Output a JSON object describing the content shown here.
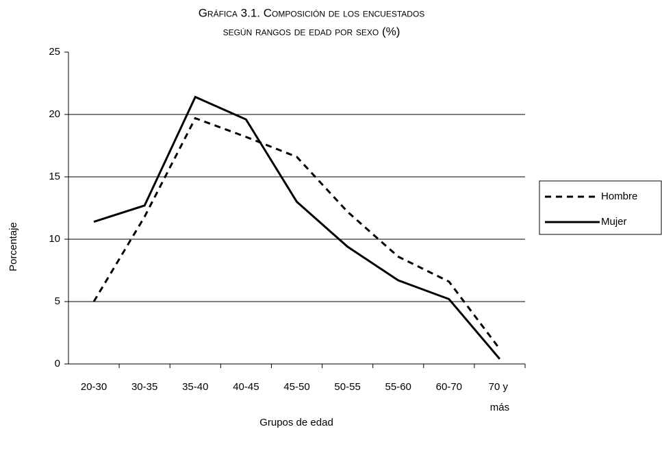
{
  "chart_data": {
    "type": "line",
    "title": [
      "Gráfica 3.1. Composición de los encuestados",
      "según rangos de edad por sexo (%)"
    ],
    "x_label": "Grupos de edad",
    "y_label": "Porcentaje",
    "categories": [
      "20-30",
      "30-35",
      "35-40",
      "40-45",
      "45-50",
      "50-55",
      "55-60",
      "60-70",
      "70 y más"
    ],
    "series": [
      {
        "name": "Hombre",
        "color": "#000000",
        "style": "dashed",
        "values": [
          5.0,
          11.8,
          19.7,
          18.2,
          16.6,
          12.2,
          8.6,
          6.6,
          1.2
        ]
      },
      {
        "name": "Mujer",
        "color": "#000000",
        "style": "solid",
        "values": [
          11.4,
          12.7,
          21.4,
          19.6,
          13.0,
          9.4,
          6.7,
          5.2,
          0.4
        ]
      }
    ],
    "ylim": [
      0,
      25
    ],
    "yticks": [
      0,
      5,
      10,
      15,
      20,
      25
    ],
    "grid": true,
    "legend": "right"
  }
}
